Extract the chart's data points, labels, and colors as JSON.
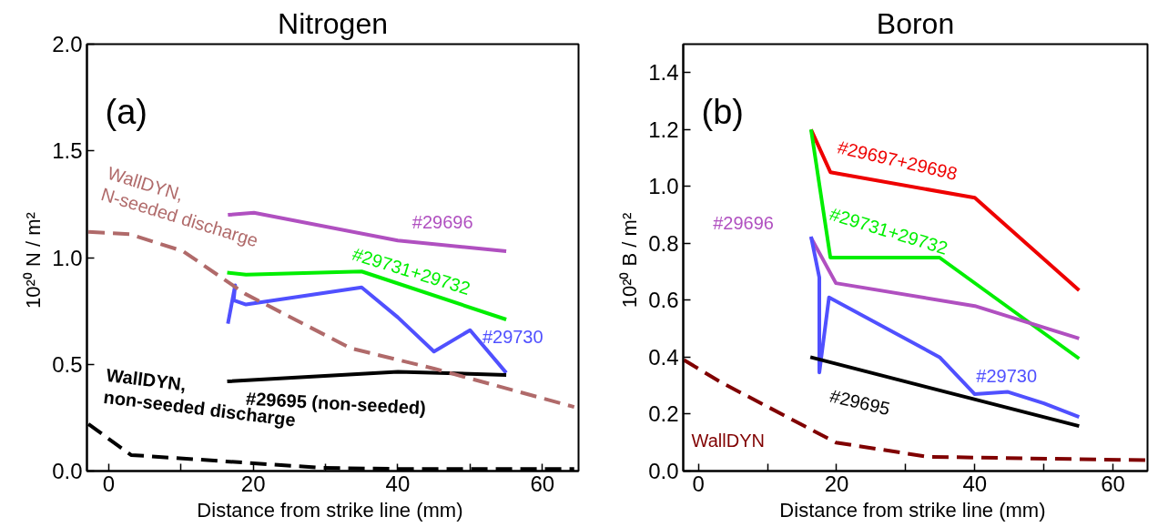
{
  "chart_data": [
    {
      "type": "line",
      "title": "Nitrogen",
      "xlabel": "Distance from strike line  (mm)",
      "ylabel": "10²⁰  N / m²",
      "annotations": [
        "(a)"
      ],
      "grid": false,
      "marker": "none",
      "xlim": [
        -3,
        65
      ],
      "ylim": [
        0,
        2.0
      ],
      "xticks": [
        0,
        {
          "value": 10,
          "label": null
        },
        20,
        {
          "value": 30,
          "label": null
        },
        40,
        {
          "value": 50,
          "label": null
        },
        60
      ],
      "yticks": [
        {
          "value": 0,
          "label": "0.0"
        },
        {
          "value": 0.5,
          "label": "0.5"
        },
        {
          "value": 1.0,
          "label": "1.0"
        },
        {
          "value": 1.5,
          "label": "1.5"
        },
        {
          "value": 2.0,
          "label": "2.0"
        }
      ],
      "series": [
        {
          "name": "#29696",
          "color": "#b050c0",
          "line_style": "solid",
          "x": [
            16.5,
            20.1,
            40,
            55
          ],
          "values": [
            1.2,
            1.21,
            1.08,
            1.03
          ]
        },
        {
          "name": "#29731+29732",
          "color": "#00ee00",
          "line_style": "solid",
          "x": [
            16.4,
            19,
            35,
            55
          ],
          "values": [
            0.93,
            0.92,
            0.935,
            0.71
          ]
        },
        {
          "name": "#29730",
          "color": "#5050ff",
          "line_style": "solid",
          "x": [
            16.5,
            17.5,
            17.3,
            19,
            35,
            40,
            45,
            50,
            55
          ],
          "values": [
            0.69,
            0.87,
            0.8,
            0.78,
            0.86,
            0.72,
            0.56,
            0.66,
            0.46
          ]
        },
        {
          "name": "#29695 (non-seeded)",
          "color": "#000000",
          "line_style": "solid",
          "x": [
            16.4,
            40,
            55
          ],
          "values": [
            0.42,
            0.465,
            0.45
          ]
        },
        {
          "name": "WallDYN,\nN-seeded discharge",
          "color": "#b06a6a",
          "line_style": "dashed",
          "x": [
            -2.8,
            2.9,
            10.3,
            18.9,
            33.5,
            45,
            64.4
          ],
          "values": [
            1.12,
            1.11,
            1.03,
            0.83,
            0.575,
            0.48,
            0.3
          ]
        },
        {
          "name": "WallDYN,\nnon-seeded discharge",
          "color": "#000000",
          "line_style": "dashed",
          "x": [
            -2.8,
            3.1,
            29.5,
            40,
            64.4
          ],
          "values": [
            0.22,
            0.075,
            0.015,
            0.01,
            0.01
          ]
        }
      ]
    },
    {
      "type": "line",
      "title": "Boron",
      "xlabel": "Distance from strike line  (mm)",
      "ylabel": "10²⁰  B / m²",
      "annotations": [
        "(b)"
      ],
      "grid": false,
      "marker": "none",
      "xlim": [
        -2.2,
        65
      ],
      "ylim": [
        0,
        1.5
      ],
      "xticks": [
        0,
        {
          "value": 10,
          "label": null
        },
        20,
        {
          "value": 30,
          "label": null
        },
        40,
        {
          "value": 50,
          "label": null
        },
        60
      ],
      "yticks": [
        {
          "value": 0,
          "label": "0.0"
        },
        {
          "value": 0.2,
          "label": "0.2"
        },
        {
          "value": 0.4,
          "label": "0.4"
        },
        {
          "value": 0.6,
          "label": "0.6"
        },
        {
          "value": 0.8,
          "label": "0.8"
        },
        {
          "value": 1.0,
          "label": "1.0"
        },
        {
          "value": 1.2,
          "label": "1.2"
        },
        {
          "value": 1.4,
          "label": "1.4"
        }
      ],
      "series": [
        {
          "name": "#29697+29698",
          "color": "#ee0000",
          "line_style": "solid",
          "x": [
            16.3,
            19.1,
            40,
            55.1
          ],
          "values": [
            1.2,
            1.05,
            0.96,
            0.635
          ]
        },
        {
          "name": "#29731+29732",
          "color": "#00ee00",
          "line_style": "solid",
          "x": [
            16.3,
            19.1,
            34.9,
            55.1
          ],
          "values": [
            1.2,
            0.75,
            0.75,
            0.395
          ]
        },
        {
          "name": "#29696",
          "color": "#b050c0",
          "line_style": "solid",
          "x": [
            16.3,
            19.9,
            40,
            55.1
          ],
          "values": [
            0.82,
            0.66,
            0.58,
            0.466
          ]
        },
        {
          "name": "#29730",
          "color": "#5050ff",
          "line_style": "solid",
          "x": [
            16.3,
            17.5,
            17.5,
            18.9,
            34.9,
            40,
            44.8,
            50,
            55.1
          ],
          "values": [
            0.824,
            0.68,
            0.346,
            0.61,
            0.4,
            0.27,
            0.278,
            0.238,
            0.19
          ]
        },
        {
          "name": "#29695",
          "color": "#000000",
          "line_style": "solid",
          "x": [
            16.2,
            55.1
          ],
          "values": [
            0.4,
            0.158
          ]
        },
        {
          "name": "WallDYN",
          "color": "#800000",
          "line_style": "dashed",
          "x": [
            -2.1,
            3.4,
            19.9,
            33.2,
            64.9
          ],
          "values": [
            0.39,
            0.31,
            0.1,
            0.05,
            0.038
          ]
        }
      ]
    }
  ]
}
